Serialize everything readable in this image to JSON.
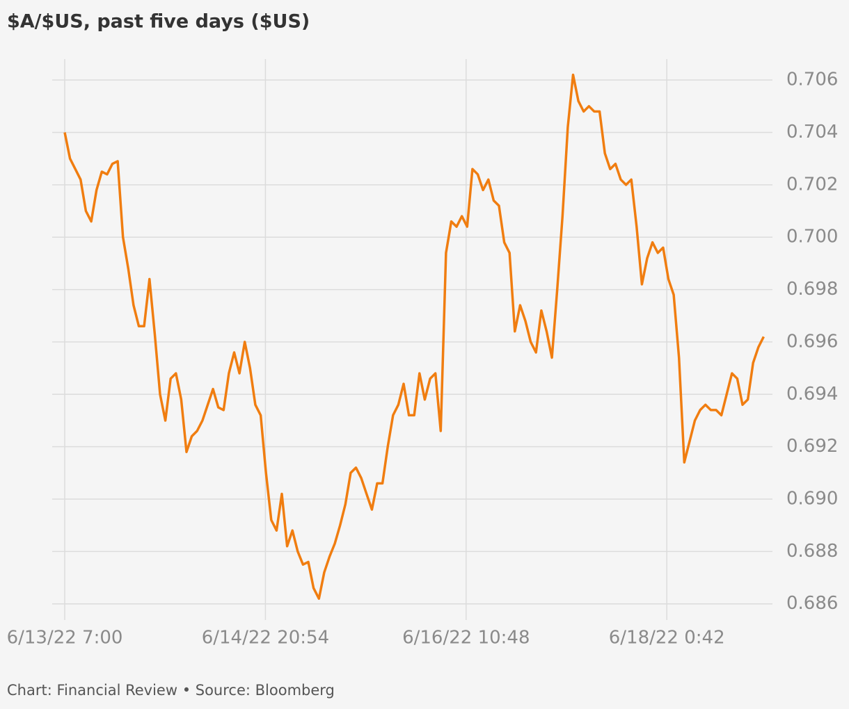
{
  "chart_data": {
    "type": "line",
    "title": "$A/$US, past five days ($US)",
    "footer": "Chart: Financial Review • Source: Bloomberg",
    "x": [
      "6/13/22 7:00",
      "6/13/22 8:00",
      "6/13/22 9:00",
      "6/13/22 10:00",
      "6/13/22 11:00",
      "6/13/22 12:00",
      "6/13/22 13:00",
      "6/13/22 14:00",
      "6/13/22 15:00",
      "6/13/22 16:00",
      "6/13/22 17:00",
      "6/13/22 18:00",
      "6/13/22 19:00",
      "6/13/22 20:00",
      "6/13/22 21:00",
      "6/13/22 22:00",
      "6/13/22 23:00",
      "6/14/22 0:00",
      "6/14/22 1:00",
      "6/14/22 2:00",
      "6/14/22 3:00",
      "6/14/22 4:00",
      "6/14/22 5:00",
      "6/14/22 6:00",
      "6/14/22 7:00",
      "6/14/22 8:00",
      "6/14/22 9:00",
      "6/14/22 10:00",
      "6/14/22 11:00",
      "6/14/22 12:00",
      "6/14/22 13:00",
      "6/14/22 14:00",
      "6/14/22 15:00",
      "6/14/22 16:00",
      "6/14/22 17:00",
      "6/14/22 18:00",
      "6/14/22 19:00",
      "6/14/22 20:00",
      "6/14/22 21:00",
      "6/14/22 22:00",
      "6/14/22 23:00",
      "6/15/22 0:00",
      "6/15/22 1:00",
      "6/15/22 2:00",
      "6/15/22 3:00",
      "6/15/22 4:00",
      "6/15/22 5:00",
      "6/15/22 6:00",
      "6/15/22 7:00",
      "6/15/22 8:00",
      "6/15/22 9:00",
      "6/15/22 10:00",
      "6/15/22 11:00",
      "6/15/22 12:00",
      "6/15/22 13:00",
      "6/15/22 14:00",
      "6/15/22 15:00",
      "6/15/22 16:00",
      "6/15/22 17:00",
      "6/15/22 18:00",
      "6/15/22 19:00",
      "6/15/22 20:00",
      "6/15/22 21:00",
      "6/15/22 22:00",
      "6/15/22 23:00",
      "6/16/22 0:00",
      "6/16/22 1:00",
      "6/16/22 2:00",
      "6/16/22 3:00",
      "6/16/22 4:00",
      "6/16/22 5:00",
      "6/16/22 6:00",
      "6/16/22 7:00",
      "6/16/22 8:00",
      "6/16/22 9:00",
      "6/16/22 10:00",
      "6/16/22 11:00",
      "6/16/22 12:00",
      "6/16/22 13:00",
      "6/16/22 14:00",
      "6/16/22 15:00",
      "6/16/22 16:00",
      "6/16/22 17:00",
      "6/16/22 18:00",
      "6/16/22 19:00",
      "6/16/22 20:00",
      "6/16/22 21:00",
      "6/16/22 22:00",
      "6/16/22 23:00",
      "6/17/22 0:00",
      "6/17/22 1:00",
      "6/17/22 2:00",
      "6/17/22 3:00",
      "6/17/22 4:00",
      "6/17/22 5:00",
      "6/17/22 6:00",
      "6/17/22 7:00",
      "6/17/22 8:00",
      "6/17/22 9:00",
      "6/17/22 10:00",
      "6/17/22 11:00",
      "6/17/22 12:00",
      "6/17/22 13:00",
      "6/17/22 14:00",
      "6/17/22 15:00",
      "6/17/22 16:00",
      "6/17/22 17:00",
      "6/17/22 18:00",
      "6/17/22 19:00",
      "6/17/22 20:00",
      "6/17/22 21:00",
      "6/17/22 22:00",
      "6/17/22 23:00",
      "6/18/22 0:00",
      "6/18/22 1:00",
      "6/18/22 2:00",
      "6/18/22 3:00",
      "6/18/22 4:00",
      "6/18/22 5:00",
      "6/18/22 6:00",
      "6/18/22 7:00",
      "6/18/22 8:00",
      "6/18/22 9:00",
      "6/18/22 10:00",
      "6/18/22 11:00",
      "6/18/22 12:00",
      "6/18/22 13:00",
      "6/18/22 14:00",
      "6/18/22 15:00",
      "6/18/22 16:00",
      "6/18/22 17:00",
      "6/18/22 18:00",
      "6/18/22 19:00"
    ],
    "series": [
      {
        "name": "$A/$US",
        "color": "#f07d10",
        "values": [
          0.704,
          0.703,
          0.7026,
          0.7022,
          0.701,
          0.7006,
          0.7018,
          0.7025,
          0.7024,
          0.7028,
          0.7029,
          0.7,
          0.6988,
          0.6974,
          0.6966,
          0.6966,
          0.6984,
          0.6963,
          0.694,
          0.693,
          0.6946,
          0.6948,
          0.6938,
          0.6918,
          0.6924,
          0.6926,
          0.693,
          0.6936,
          0.6942,
          0.6935,
          0.6934,
          0.6948,
          0.6956,
          0.6948,
          0.696,
          0.695,
          0.6936,
          0.6932,
          0.691,
          0.6892,
          0.6888,
          0.6902,
          0.6882,
          0.6888,
          0.688,
          0.6875,
          0.6876,
          0.6866,
          0.6862,
          0.6872,
          0.6878,
          0.6883,
          0.689,
          0.6898,
          0.691,
          0.6912,
          0.6908,
          0.6902,
          0.6896,
          0.6906,
          0.6906,
          0.692,
          0.6932,
          0.6936,
          0.6944,
          0.6932,
          0.6932,
          0.6948,
          0.6938,
          0.6946,
          0.6948,
          0.6926,
          0.6994,
          0.7006,
          0.7004,
          0.7008,
          0.7004,
          0.7026,
          0.7024,
          0.7018,
          0.7022,
          0.7014,
          0.7012,
          0.6998,
          0.6994,
          0.6964,
          0.6974,
          0.6968,
          0.696,
          0.6956,
          0.6972,
          0.6964,
          0.6954,
          0.698,
          0.7008,
          0.7042,
          0.7062,
          0.7052,
          0.7048,
          0.705,
          0.7048,
          0.7048,
          0.7032,
          0.7026,
          0.7028,
          0.7022,
          0.702,
          0.7022,
          0.7004,
          0.6982,
          0.6992,
          0.6998,
          0.6994,
          0.6996,
          0.6984,
          0.6978,
          0.6954,
          0.6914,
          0.6922,
          0.693,
          0.6934,
          0.6936,
          0.6934,
          0.6934,
          0.6932,
          0.694,
          0.6948,
          0.6946,
          0.6936,
          0.6938,
          0.6952,
          0.6958,
          0.6962
        ]
      }
    ],
    "xlim": [
      "6/13/22 4:38",
      "6/18/22 20:39"
    ],
    "xticks": [
      "6/13/22 7:00",
      "6/14/22 20:54",
      "6/16/22 10:48",
      "6/18/22 0:42"
    ],
    "ylim": [
      0.6857,
      0.7068
    ],
    "yticks": [
      0.686,
      0.688,
      {
        "value": 0.69,
        "label": "0.690"
      },
      0.692,
      0.694,
      0.696,
      0.698,
      {
        "value": 0.7,
        "label": "0.700"
      },
      0.702,
      0.704,
      0.706
    ],
    "grid": true
  }
}
